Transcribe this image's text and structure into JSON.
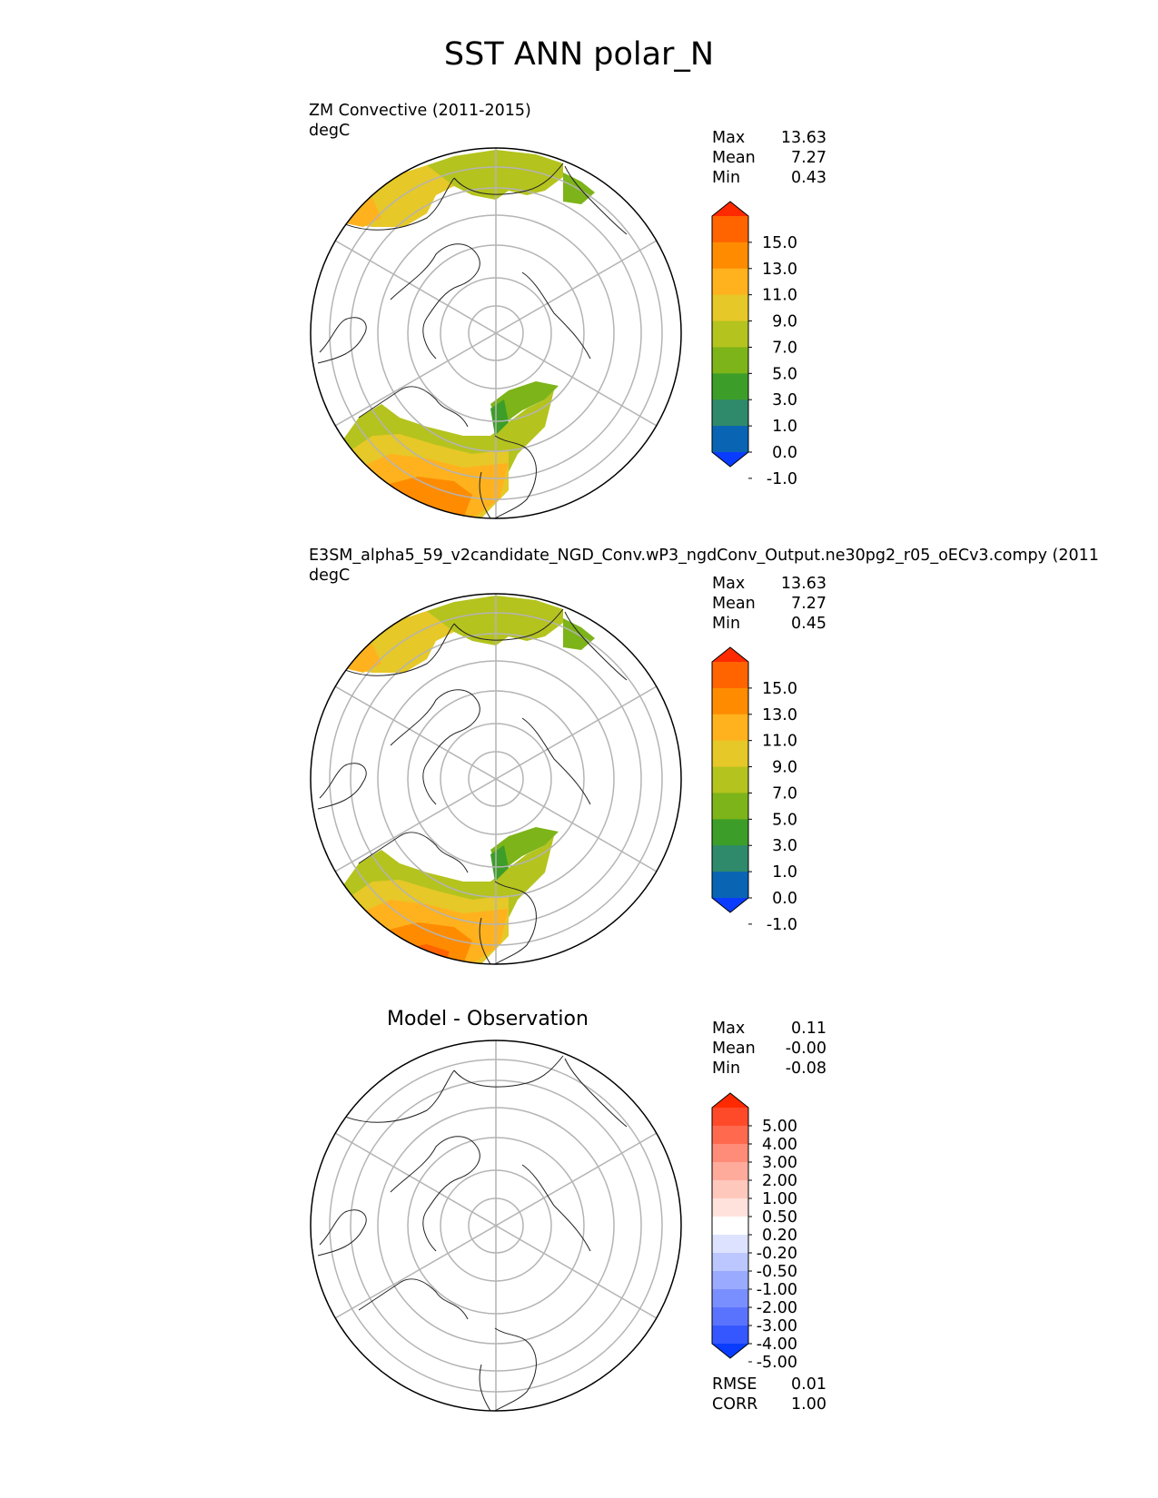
{
  "figure_title": "SST ANN polar_N",
  "panels": [
    {
      "title_line1": "ZM Convective (2011-2015)",
      "units": "degC",
      "stats": {
        "max_label": "Max",
        "max": "13.63",
        "mean_label": "Mean",
        "mean": "7.27",
        "min_label": "Min",
        "min": "0.43"
      }
    },
    {
      "title_line1": "E3SM_alpha5_59_v2candidate_NGD_Conv.wP3_ngdConv_Output.ne30pg2_r05_oECv3.compy (2011",
      "units": "degC",
      "stats": {
        "max_label": "Max",
        "max": "13.63",
        "mean_label": "Mean",
        "mean": "7.27",
        "min_label": "Min",
        "min": "0.45"
      }
    },
    {
      "title_line1": "Model - Observation",
      "stats": {
        "max_label": "Max",
        "max": "0.11",
        "mean_label": "Mean",
        "mean": "-0.00",
        "min_label": "Min",
        "min": "-0.08"
      },
      "metrics": {
        "rmse_label": "RMSE",
        "rmse": "0.01",
        "corr_label": "CORR",
        "corr": "1.00"
      }
    }
  ],
  "chart_data": [
    {
      "type": "heatmap",
      "projection": "north polar stereographic",
      "title": "ZM Convective (2011-2015)",
      "units": "degC",
      "colorbar": {
        "ticks": [
          "15.0",
          "13.0",
          "11.0",
          "9.0",
          "7.0",
          "5.0",
          "3.0",
          "1.0",
          "0.0",
          "-1.0"
        ],
        "colors": [
          "#ff2a00",
          "#ff6400",
          "#ff8c00",
          "#ffb21e",
          "#e6c828",
          "#b4c31e",
          "#7db419",
          "#3c9e28",
          "#2e8a6a",
          "#0a64b4",
          "#0a3cff"
        ]
      }
    },
    {
      "type": "heatmap",
      "projection": "north polar stereographic",
      "title": "E3SM_alpha5_59_v2candidate_NGD_Conv.wP3_ngdConv_Output.ne30pg2_r05_oECv3.compy (2011",
      "units": "degC",
      "colorbar": {
        "ticks": [
          "15.0",
          "13.0",
          "11.0",
          "9.0",
          "7.0",
          "5.0",
          "3.0",
          "1.0",
          "0.0",
          "-1.0"
        ],
        "colors": [
          "#ff2a00",
          "#ff6400",
          "#ff8c00",
          "#ffb21e",
          "#e6c828",
          "#b4c31e",
          "#7db419",
          "#3c9e28",
          "#2e8a6a",
          "#0a64b4",
          "#0a3cff"
        ]
      }
    },
    {
      "type": "heatmap",
      "projection": "north polar stereographic",
      "title": "Model - Observation",
      "colorbar": {
        "ticks": [
          "5.00",
          "4.00",
          "3.00",
          "2.00",
          "1.00",
          "0.50",
          "0.20",
          "-0.20",
          "-0.50",
          "-1.00",
          "-2.00",
          "-3.00",
          "-4.00",
          "-5.00"
        ],
        "colors": [
          "#ff2a00",
          "#ff4a2a",
          "#ff6a4f",
          "#ff8c78",
          "#ffab9c",
          "#ffc8bd",
          "#ffe2dc",
          "#ffffff",
          "#dde3ff",
          "#bcc7ff",
          "#9aabff",
          "#7a8fff",
          "#5a73ff",
          "#3457ff",
          "#0a3cff"
        ]
      }
    }
  ]
}
